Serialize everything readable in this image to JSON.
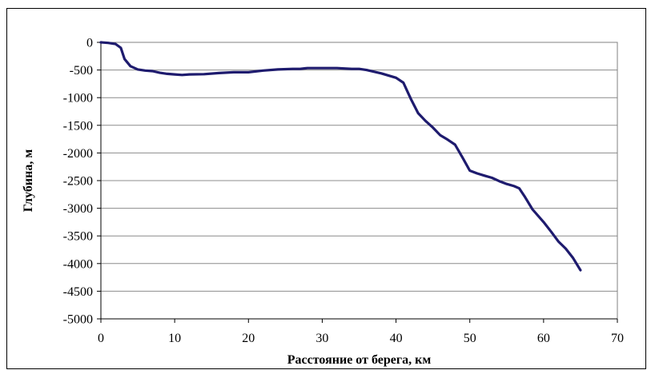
{
  "chart_data": {
    "type": "line",
    "title": "",
    "xlabel": "Расстояние от берега, км",
    "ylabel": "Глубина, м",
    "xlim": [
      0,
      70
    ],
    "ylim": [
      -5000,
      0
    ],
    "x_ticks": [
      0,
      10,
      20,
      30,
      40,
      50,
      60,
      70
    ],
    "y_ticks": [
      0,
      -500,
      -1000,
      -1500,
      -2000,
      -2500,
      -3000,
      -3500,
      -4000,
      -4500,
      -5000
    ],
    "grid": "horizontal",
    "legend": "none",
    "series": [
      {
        "color": "#1e1b6e",
        "x": [
          0,
          1,
          2,
          2.7,
          3.2,
          4,
          5,
          6,
          7,
          8,
          9,
          10,
          11,
          12,
          14,
          16,
          18,
          20,
          22,
          24,
          26,
          27,
          28,
          30,
          32,
          34,
          35,
          36,
          38,
          40,
          41,
          42,
          43,
          44,
          45,
          46,
          47,
          48,
          49,
          50,
          51,
          52,
          53,
          54,
          55,
          56,
          56.7,
          57.5,
          58.5,
          60,
          61,
          62,
          63,
          64,
          65
        ],
        "y": [
          0,
          -10,
          -30,
          -100,
          -300,
          -430,
          -490,
          -510,
          -520,
          -550,
          -570,
          -580,
          -590,
          -580,
          -575,
          -555,
          -540,
          -540,
          -510,
          -490,
          -480,
          -480,
          -465,
          -465,
          -465,
          -480,
          -480,
          -500,
          -560,
          -640,
          -730,
          -1020,
          -1280,
          -1420,
          -1540,
          -1680,
          -1760,
          -1850,
          -2080,
          -2320,
          -2370,
          -2410,
          -2450,
          -2510,
          -2560,
          -2600,
          -2640,
          -2800,
          -3020,
          -3250,
          -3420,
          -3600,
          -3730,
          -3900,
          -4120
        ]
      }
    ]
  }
}
